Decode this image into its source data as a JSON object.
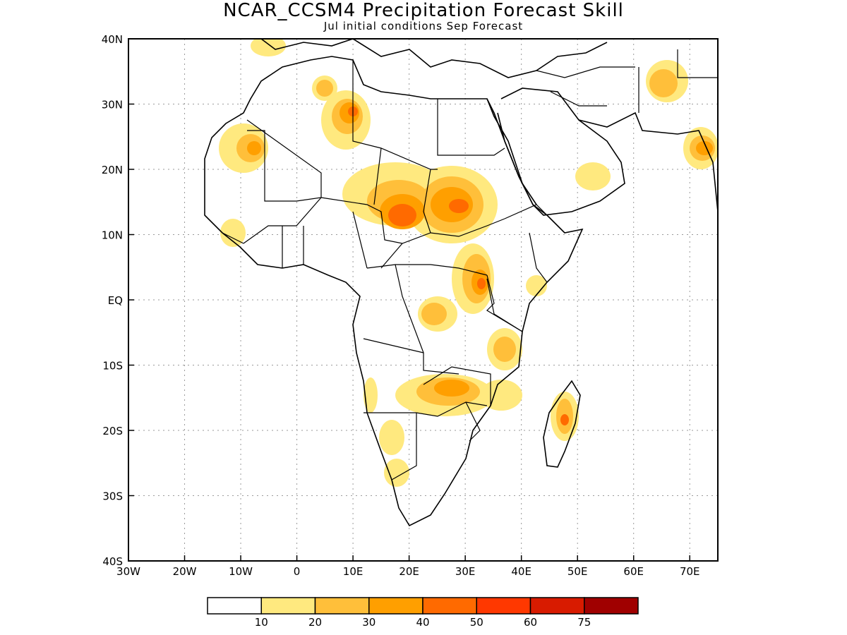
{
  "title": "NCAR_CCSM4 Precipitation Forecast Skill",
  "subtitle": "Jul initial conditions  Sep Forecast",
  "map": {
    "lon_ticks": [
      "30W",
      "20W",
      "10W",
      "0",
      "10E",
      "20E",
      "30E",
      "40E",
      "50E",
      "60E",
      "70E"
    ],
    "lat_ticks": [
      "40N",
      "30N",
      "20N",
      "10N",
      "EQ",
      "10S",
      "20S",
      "30S",
      "40S"
    ],
    "lon_range": [
      -30,
      75
    ],
    "lat_range": [
      -40,
      40
    ],
    "grid": "dotted"
  },
  "legend": {
    "labels": [
      "10",
      "20",
      "30",
      "40",
      "50",
      "60",
      "75"
    ],
    "colors": [
      "#ffffff",
      "#ffe97f",
      "#ffbf3a",
      "#ff9f00",
      "#ff6a00",
      "#ff3800",
      "#d81b00",
      "#a00000"
    ]
  }
}
